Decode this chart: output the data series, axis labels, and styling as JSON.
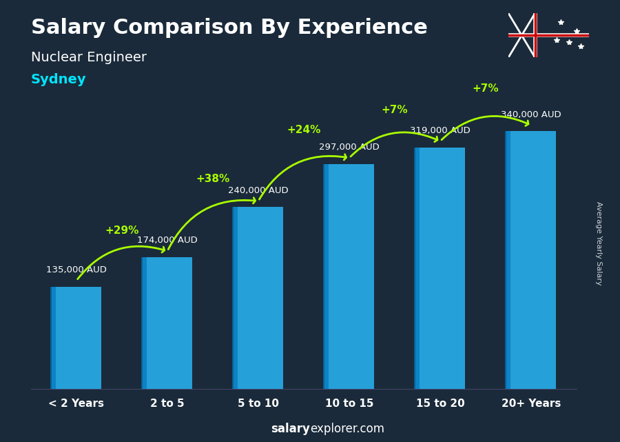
{
  "categories": [
    "< 2 Years",
    "2 to 5",
    "5 to 10",
    "10 to 15",
    "15 to 20",
    "20+ Years"
  ],
  "values": [
    135000,
    174000,
    240000,
    297000,
    319000,
    340000
  ],
  "labels": [
    "135,000 AUD",
    "174,000 AUD",
    "240,000 AUD",
    "297,000 AUD",
    "319,000 AUD",
    "340,000 AUD"
  ],
  "pct_changes": [
    "+29%",
    "+38%",
    "+24%",
    "+7%",
    "+7%"
  ],
  "title_main": "Salary Comparison By Experience",
  "title_sub1": "Nuclear Engineer",
  "title_sub2": "Sydney",
  "ylabel_right": "Average Yearly Salary",
  "footer": "salaryexplorer.com",
  "bar_color_top": "#29b6f6",
  "bar_color_bottom": "#0277bd",
  "background_color": "#1a2a3a",
  "text_color_white": "#ffffff",
  "text_color_cyan": "#00e5ff",
  "text_color_green": "#aaff00",
  "arrow_color": "#aaff00",
  "ylim": [
    0,
    420000
  ]
}
